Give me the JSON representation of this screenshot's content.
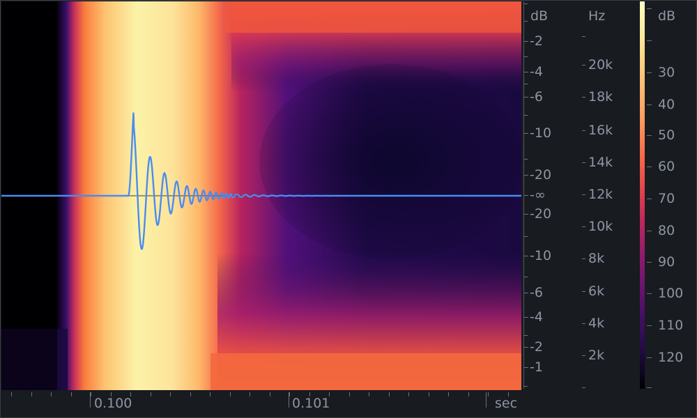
{
  "spectrogram": {
    "colors": {
      "black": "#000004",
      "deep_purple": "#1b0a3e",
      "purple": "#5a127a",
      "magenta": "#a21f6e",
      "red": "#e5404a",
      "orange": "#fb7d3c",
      "yellow": "#fcd27a",
      "pale_yellow": "#fbf5b0"
    },
    "waveform_color": "#4a8cf0"
  },
  "db_axis": {
    "unit": "dB",
    "labels": [
      "-2",
      "-4",
      "-6",
      "-10",
      "-20",
      "-∞",
      "-20",
      "-10",
      "-6",
      "-4",
      "-2",
      "-1"
    ]
  },
  "hz_axis": {
    "unit": "Hz",
    "labels": [
      "20k",
      "18k",
      "16k",
      "14k",
      "12k",
      "10k",
      "8k",
      "6k",
      "4k",
      "2k"
    ]
  },
  "colorbar": {
    "unit": "dB",
    "labels": [
      "30",
      "40",
      "50",
      "60",
      "70",
      "80",
      "90",
      "100",
      "110",
      "120"
    ]
  },
  "time_axis": {
    "unit": "sec",
    "labels": [
      "0.100",
      "0.101"
    ]
  }
}
